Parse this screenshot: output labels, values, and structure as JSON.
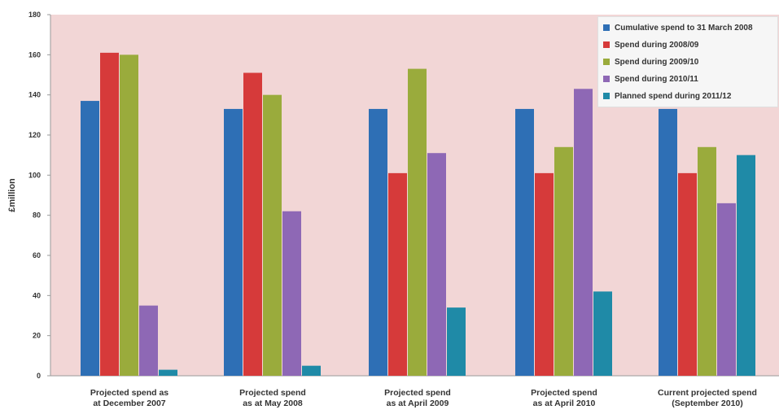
{
  "chart_data": {
    "type": "bar",
    "title": "",
    "xlabel": "",
    "ylabel": "£million",
    "ylim": [
      0,
      180
    ],
    "yticks": [
      0,
      20,
      40,
      60,
      80,
      100,
      120,
      140,
      160,
      180
    ],
    "categories": [
      [
        "Projected spend as",
        "at December 2007"
      ],
      [
        "Projected spend",
        "as at May 2008"
      ],
      [
        "Projected spend",
        "as at April 2009"
      ],
      [
        "Projected spend",
        "as at April 2010"
      ],
      [
        "Current projected spend",
        "(September 2010)"
      ]
    ],
    "series": [
      {
        "name": "Cumulative spend to 31 March 2008",
        "color": "#2e6fb5",
        "values": [
          137,
          133,
          133,
          133,
          133
        ]
      },
      {
        "name": "Spend during 2008/09",
        "color": "#d63a3a",
        "values": [
          161,
          151,
          101,
          101,
          101
        ]
      },
      {
        "name": "Spend during 2009/10",
        "color": "#9aab3c",
        "values": [
          160,
          140,
          153,
          114,
          114
        ]
      },
      {
        "name": "Spend during 2010/11",
        "color": "#8e68b5",
        "values": [
          35,
          82,
          111,
          143,
          86
        ]
      },
      {
        "name": "Planned spend during 2011/12",
        "color": "#1f8aa7",
        "values": [
          3,
          5,
          34,
          42,
          110
        ]
      }
    ],
    "plot_background": "#f2d6d6",
    "grid": false,
    "legend_position": "top-right"
  }
}
